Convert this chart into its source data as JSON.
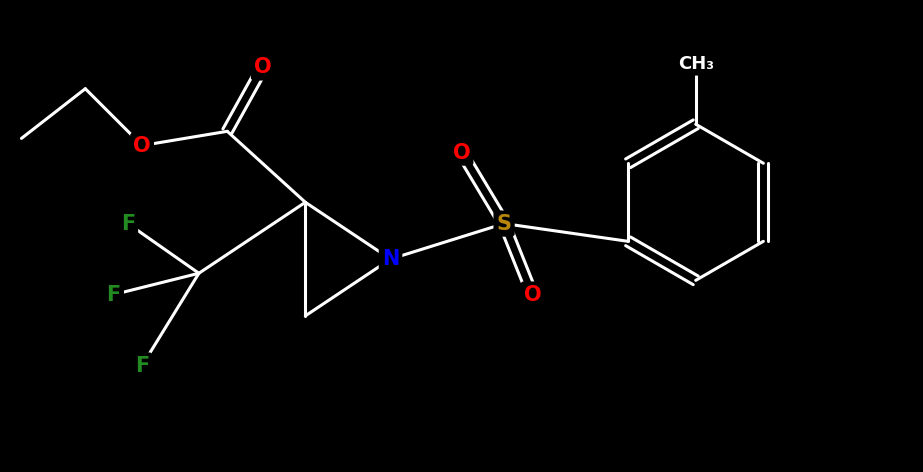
{
  "background_color": "#000000",
  "bond_color": "#ffffff",
  "atom_colors": {
    "O": "#ff0000",
    "N": "#0000ff",
    "S": "#b8860b",
    "F": "#228b22",
    "C": "#ffffff"
  },
  "figsize": [
    9.23,
    4.72
  ],
  "dpi": 100
}
